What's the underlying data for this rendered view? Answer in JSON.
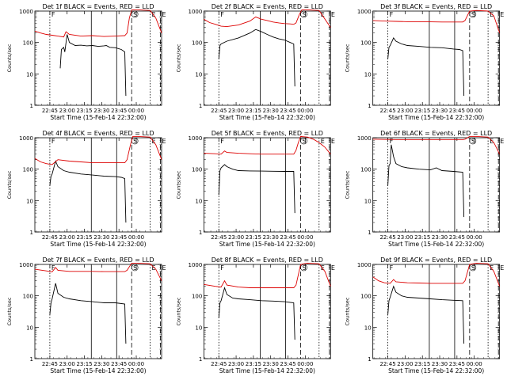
{
  "figure": {
    "background": "#ffffff",
    "colors": {
      "events": "#000000",
      "lld": "#dd0000",
      "axis": "#000000"
    }
  },
  "chart_data": [
    {
      "type": "line",
      "title": "Det 1f BLACK = Events, RED = LLD",
      "xlabel": "Start Time (15-Feb-14 22:32:00)",
      "ylabel": "Counts/sec",
      "yscale": "log",
      "ylim": [
        1,
        1000
      ],
      "xticks": [
        "22:45",
        "23:00",
        "23:15",
        "23:30",
        "23:45",
        "00:00"
      ],
      "yticks": [
        "1",
        "10",
        "100",
        "1000"
      ],
      "markers": [
        "F",
        "S",
        "E",
        "E"
      ],
      "series": [
        {
          "name": "Events",
          "color": "#000000",
          "x_minutes": [
            22,
            23,
            25,
            26,
            28,
            30,
            35,
            40,
            45,
            50,
            55,
            60,
            62,
            65,
            70,
            75,
            78,
            79
          ],
          "y": [
            15,
            60,
            70,
            50,
            180,
            100,
            80,
            82,
            78,
            80,
            75,
            78,
            80,
            70,
            68,
            60,
            50,
            2
          ]
        },
        {
          "name": "LLD",
          "color": "#dd0000",
          "x_minutes": [
            0,
            5,
            10,
            15,
            20,
            25,
            27,
            30,
            40,
            50,
            60,
            70,
            78,
            80,
            82,
            84,
            90,
            100,
            105,
            110
          ],
          "y": [
            230,
            200,
            180,
            170,
            160,
            150,
            220,
            180,
            160,
            165,
            155,
            160,
            165,
            200,
            600,
            1100,
            1100,
            1050,
            600,
            200
          ]
        }
      ]
    },
    {
      "type": "line",
      "title": "Det 2f BLACK = Events, RED = LLD",
      "xlabel": "Start Time (15-Feb-14 22:32:00)",
      "ylabel": "Counts/sec",
      "yscale": "log",
      "ylim": [
        1,
        1000
      ],
      "xticks": [
        "22:45",
        "23:00",
        "23:15",
        "23:30",
        "23:45",
        "00:00"
      ],
      "yticks": [
        "1",
        "10",
        "100",
        "1000"
      ],
      "markers": [
        "F",
        "S",
        "E",
        "E"
      ],
      "series": [
        {
          "name": "Events",
          "color": "#000000",
          "x_minutes": [
            13,
            14,
            15,
            20,
            30,
            40,
            45,
            50,
            55,
            60,
            65,
            70,
            75,
            78,
            79
          ],
          "y": [
            30,
            80,
            90,
            110,
            140,
            200,
            260,
            220,
            180,
            150,
            130,
            120,
            100,
            90,
            4
          ]
        },
        {
          "name": "LLD",
          "color": "#dd0000",
          "x_minutes": [
            0,
            5,
            10,
            15,
            20,
            30,
            40,
            45,
            50,
            55,
            60,
            65,
            70,
            75,
            78,
            80,
            83,
            85,
            90,
            100,
            110
          ],
          "y": [
            550,
            430,
            380,
            330,
            320,
            360,
            480,
            650,
            550,
            500,
            450,
            420,
            400,
            390,
            380,
            420,
            800,
            1100,
            1100,
            1050,
            300
          ]
        }
      ]
    },
    {
      "type": "line",
      "title": "Det 3f BLACK = Events, RED = LLD",
      "xlabel": "Start Time (15-Feb-14 22:32:00)",
      "ylabel": "Counts/sec",
      "yscale": "log",
      "ylim": [
        1,
        1000
      ],
      "xticks": [
        "22:45",
        "23:00",
        "23:15",
        "23:30",
        "23:45",
        "00:00"
      ],
      "yticks": [
        "1",
        "10",
        "100",
        "1000"
      ],
      "markers": [
        "F",
        "S",
        "E",
        "E"
      ],
      "series": [
        {
          "name": "Events",
          "color": "#000000",
          "x_minutes": [
            13,
            14,
            15,
            18,
            20,
            25,
            30,
            40,
            50,
            60,
            70,
            75,
            78,
            79
          ],
          "y": [
            30,
            70,
            80,
            140,
            110,
            90,
            80,
            75,
            70,
            68,
            62,
            60,
            55,
            2
          ]
        },
        {
          "name": "LLD",
          "color": "#dd0000",
          "x_minutes": [
            0,
            10,
            20,
            30,
            40,
            50,
            60,
            70,
            78,
            80,
            84,
            90,
            100,
            105,
            110
          ],
          "y": [
            500,
            480,
            470,
            460,
            460,
            455,
            450,
            450,
            450,
            500,
            1000,
            1050,
            1000,
            700,
            200
          ]
        }
      ]
    },
    {
      "type": "line",
      "title": "Det 4f BLACK = Events, RED = LLD",
      "xlabel": "Start Time (15-Feb-14 22:32:00)",
      "ylabel": "Counts/sec",
      "yscale": "log",
      "ylim": [
        1,
        1000
      ],
      "xticks": [
        "22:45",
        "23:00",
        "23:15",
        "23:30",
        "23:45",
        "00:00"
      ],
      "yticks": [
        "1",
        "10",
        "100",
        "1000"
      ],
      "markers": [
        "F",
        "S",
        "E",
        "E"
      ],
      "series": [
        {
          "name": "Events",
          "color": "#000000",
          "x_minutes": [
            13,
            14,
            15,
            18,
            20,
            25,
            30,
            40,
            50,
            60,
            70,
            75,
            78,
            79
          ],
          "y": [
            30,
            60,
            70,
            180,
            120,
            90,
            80,
            70,
            65,
            60,
            58,
            55,
            50,
            2
          ]
        },
        {
          "name": "LLD",
          "color": "#dd0000",
          "x_minutes": [
            0,
            5,
            10,
            15,
            20,
            30,
            40,
            50,
            60,
            70,
            78,
            80,
            83,
            85,
            90,
            100,
            105,
            110
          ],
          "y": [
            220,
            170,
            150,
            140,
            200,
            180,
            170,
            160,
            160,
            160,
            160,
            200,
            600,
            1100,
            1100,
            1050,
            600,
            200
          ]
        }
      ]
    },
    {
      "type": "line",
      "title": "Det 5f BLACK = Events, RED = LLD",
      "xlabel": "Start Time (15-Feb-14 22:32:00)",
      "ylabel": "Counts/sec",
      "yscale": "log",
      "ylim": [
        1,
        1000
      ],
      "xticks": [
        "22:45",
        "23:00",
        "23:15",
        "23:30",
        "23:45",
        "00:00"
      ],
      "yticks": [
        "1",
        "10",
        "100",
        "1000"
      ],
      "markers": [
        "F",
        "S",
        "E",
        "E"
      ],
      "series": [
        {
          "name": "Events",
          "color": "#000000",
          "x_minutes": [
            13,
            14,
            15,
            18,
            20,
            25,
            30,
            40,
            50,
            60,
            70,
            78,
            79
          ],
          "y": [
            15,
            90,
            110,
            140,
            120,
            100,
            90,
            88,
            87,
            86,
            85,
            85,
            4
          ]
        },
        {
          "name": "LLD",
          "color": "#dd0000",
          "x_minutes": [
            0,
            10,
            15,
            18,
            20,
            30,
            40,
            50,
            60,
            70,
            78,
            80,
            82,
            84,
            90,
            95,
            100,
            105,
            110
          ],
          "y": [
            320,
            310,
            300,
            380,
            340,
            320,
            310,
            300,
            300,
            300,
            300,
            400,
            700,
            1100,
            1050,
            900,
            700,
            500,
            300
          ]
        }
      ]
    },
    {
      "type": "line",
      "title": "Det 6f BLACK = Events, RED = LLD",
      "xlabel": "Start Time (15-Feb-14 22:32:00)",
      "ylabel": "Counts/sec",
      "yscale": "log",
      "ylim": [
        1,
        1000
      ],
      "xticks": [
        "22:45",
        "23:00",
        "23:15",
        "23:30",
        "23:45",
        "00:00"
      ],
      "yticks": [
        "1",
        "10",
        "100",
        "1000"
      ],
      "markers": [
        "F",
        "S",
        "E",
        "E"
      ],
      "series": [
        {
          "name": "Events",
          "color": "#000000",
          "x_minutes": [
            13,
            14,
            15,
            16,
            18,
            20,
            25,
            30,
            40,
            50,
            55,
            60,
            70,
            78,
            79
          ],
          "y": [
            30,
            130,
            150,
            600,
            250,
            150,
            120,
            110,
            100,
            95,
            110,
            90,
            85,
            80,
            3
          ]
        },
        {
          "name": "LLD",
          "color": "#dd0000",
          "x_minutes": [
            0,
            10,
            20,
            30,
            40,
            50,
            60,
            70,
            78,
            80,
            84,
            90,
            100,
            105,
            110
          ],
          "y": [
            900,
            880,
            870,
            860,
            860,
            860,
            860,
            860,
            860,
            900,
            1100,
            1100,
            1050,
            700,
            300
          ]
        }
      ]
    },
    {
      "type": "line",
      "title": "Det 7f BLACK = Events, RED = LLD",
      "xlabel": "Start Time (15-Feb-14 22:32:00)",
      "ylabel": "Counts/sec",
      "yscale": "log",
      "ylim": [
        1,
        1000
      ],
      "xticks": [
        "22:45",
        "23:00",
        "23:15",
        "23:30",
        "23:45",
        "00:00"
      ],
      "yticks": [
        "1",
        "10",
        "100",
        "1000"
      ],
      "markers": [
        "F",
        "S",
        "E",
        "E"
      ],
      "series": [
        {
          "name": "Events",
          "color": "#000000",
          "x_minutes": [
            13,
            14,
            15,
            18,
            20,
            25,
            30,
            40,
            50,
            60,
            70,
            78,
            79
          ],
          "y": [
            25,
            60,
            80,
            250,
            120,
            90,
            80,
            70,
            65,
            60,
            60,
            55,
            3
          ]
        },
        {
          "name": "LLD",
          "color": "#dd0000",
          "x_minutes": [
            0,
            10,
            15,
            18,
            20,
            30,
            40,
            50,
            60,
            70,
            78,
            80,
            84,
            90,
            100,
            105,
            110
          ],
          "y": [
            700,
            620,
            580,
            800,
            650,
            600,
            600,
            600,
            590,
            590,
            590,
            650,
            1100,
            1100,
            1050,
            700,
            300
          ]
        }
      ]
    },
    {
      "type": "line",
      "title": "Det 8f BLACK = Events, RED = LLD",
      "xlabel": "Start Time (15-Feb-14 22:32:00)",
      "ylabel": "Counts/sec",
      "yscale": "log",
      "ylim": [
        1,
        1000
      ],
      "xticks": [
        "22:45",
        "23:00",
        "23:15",
        "23:30",
        "23:45",
        "00:00"
      ],
      "yticks": [
        "1",
        "10",
        "100",
        "1000"
      ],
      "markers": [
        "F",
        "S",
        "E",
        "E"
      ],
      "series": [
        {
          "name": "Events",
          "color": "#000000",
          "x_minutes": [
            13,
            14,
            15,
            18,
            20,
            25,
            30,
            40,
            50,
            60,
            70,
            78,
            79
          ],
          "y": [
            20,
            60,
            70,
            180,
            110,
            85,
            80,
            75,
            70,
            68,
            65,
            60,
            4
          ]
        },
        {
          "name": "LLD",
          "color": "#dd0000",
          "x_minutes": [
            0,
            10,
            15,
            18,
            20,
            30,
            40,
            50,
            60,
            70,
            78,
            80,
            84,
            90,
            100,
            105,
            110
          ],
          "y": [
            230,
            200,
            190,
            300,
            220,
            190,
            180,
            180,
            180,
            180,
            180,
            220,
            1000,
            1100,
            1050,
            600,
            200
          ]
        }
      ]
    },
    {
      "type": "line",
      "title": "Det 9f BLACK = Events, RED = LLD",
      "xlabel": "Start Time (15-Feb-14 22:32:00)",
      "ylabel": "Counts/sec",
      "yscale": "log",
      "ylim": [
        1,
        1000
      ],
      "xticks": [
        "22:45",
        "23:00",
        "23:15",
        "23:30",
        "23:45",
        "00:00"
      ],
      "yticks": [
        "1",
        "10",
        "100",
        "1000"
      ],
      "markers": [
        "F",
        "S",
        "E",
        "E"
      ],
      "series": [
        {
          "name": "Events",
          "color": "#000000",
          "x_minutes": [
            13,
            14,
            15,
            18,
            20,
            25,
            30,
            40,
            50,
            60,
            70,
            78,
            79
          ],
          "y": [
            25,
            70,
            90,
            200,
            130,
            100,
            90,
            85,
            80,
            75,
            72,
            70,
            3
          ]
        },
        {
          "name": "LLD",
          "color": "#dd0000",
          "x_minutes": [
            0,
            5,
            10,
            15,
            18,
            20,
            30,
            40,
            50,
            60,
            70,
            78,
            80,
            84,
            90,
            100,
            105,
            110
          ],
          "y": [
            400,
            300,
            260,
            250,
            330,
            280,
            260,
            255,
            250,
            250,
            250,
            250,
            300,
            1000,
            1100,
            1050,
            600,
            200
          ]
        }
      ]
    }
  ]
}
